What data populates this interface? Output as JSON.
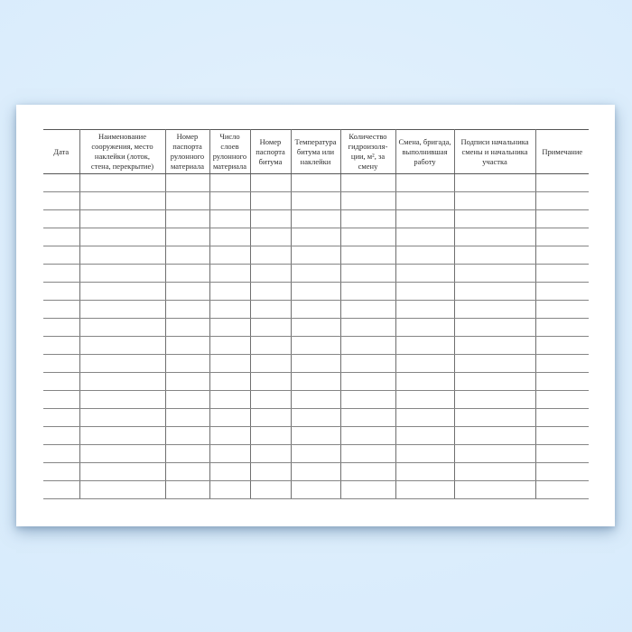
{
  "colors": {
    "background_blue": "#d6ebfc",
    "page_white": "#ffffff",
    "grid_line": "#6f6f6f",
    "text": "#2e2e2e"
  },
  "table": {
    "body_rows": 18,
    "columns": [
      {
        "label": "Дата"
      },
      {
        "label": "Наименование\nсооружения, место\nнаклейки (лоток,\nстена, перекрытие)"
      },
      {
        "label": "Номер\nпаспорта\nрулонного\nматериала"
      },
      {
        "label": "Число\nслоев\nрулонного\nматериала"
      },
      {
        "label": "Номер\nпаспорта\nбитума"
      },
      {
        "label": "Температура\nбитума или\nнаклейки"
      },
      {
        "label": "Количество\nгидроизоля-\nции, м², за\nсмену"
      },
      {
        "label": "Смена, бригада,\nвыполнившая\nработу"
      },
      {
        "label": "Подписи начальника\nсмены и начальника\nучастка"
      },
      {
        "label": "Примечание"
      }
    ]
  }
}
